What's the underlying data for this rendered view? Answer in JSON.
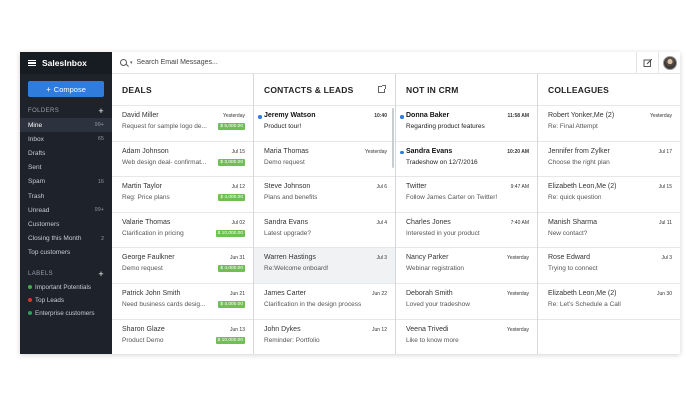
{
  "app": {
    "brand": "SalesInbox"
  },
  "sidebar": {
    "compose_label": "Compose",
    "folders_heading": "FOLDERS",
    "folders": [
      {
        "label": "Mine",
        "count": "99+"
      },
      {
        "label": "Inbox",
        "count": "65"
      },
      {
        "label": "Drafts",
        "count": ""
      },
      {
        "label": "Sent",
        "count": ""
      },
      {
        "label": "Spam",
        "count": "16"
      },
      {
        "label": "Trash",
        "count": ""
      },
      {
        "label": "Unread",
        "count": "99+"
      },
      {
        "label": "Customers",
        "count": ""
      },
      {
        "label": "Closing this Month",
        "count": "2"
      },
      {
        "label": "Top customers",
        "count": ""
      }
    ],
    "labels_heading": "LABELS",
    "labels": [
      {
        "label": "Important Potentials",
        "color": "#3fae49"
      },
      {
        "label": "Top Leads",
        "color": "#d9342b"
      },
      {
        "label": "Enterprise customers",
        "color": "#2e9e5b"
      }
    ]
  },
  "search": {
    "placeholder": "Search Email Messages..."
  },
  "columns": [
    {
      "title": "DEALS",
      "cards": [
        {
          "name": "David Miller",
          "time": "Yesterday",
          "subject": "Request for sample logo de...",
          "badge": "$ 5,000.00"
        },
        {
          "name": "Adam Johnson",
          "time": "Jul 15",
          "subject": "Web design deal- confirmat...",
          "badge": "$ 3,000.00"
        },
        {
          "name": "Martin Taylor",
          "time": "Jul 12",
          "subject": "Reg: Price plans",
          "badge": "$ 4,000.00"
        },
        {
          "name": "Valarie Thomas",
          "time": "Jul 02",
          "subject": "Clarification in pricing",
          "badge": "$ 10,000.00"
        },
        {
          "name": "George Faulkner",
          "time": "Jun 31",
          "subject": "Demo request",
          "badge": "$ 4,000.00"
        },
        {
          "name": "Patrick John Smith",
          "time": "Jun 21",
          "subject": "Need business cards desig...",
          "badge": "$ 4,000.00"
        },
        {
          "name": "Sharon Glaze",
          "time": "Jun 13",
          "subject": "Product Demo",
          "badge": "$ 10,000.00"
        }
      ]
    },
    {
      "title": "CONTACTS & LEADS",
      "cards": [
        {
          "name": "Jeremy Watson",
          "time": "10:40",
          "subject": "Product tour!",
          "unread": true
        },
        {
          "name": "Maria Thomas",
          "time": "Yesterday",
          "subject": "Demo request"
        },
        {
          "name": "Steve Johnson",
          "time": "Jul 6",
          "subject": "Plans and benefits"
        },
        {
          "name": "Sandra Evans",
          "time": "Jul 4",
          "subject": "Latest upgrade?"
        },
        {
          "name": "Warren Hastings",
          "time": "Jul 3",
          "subject": "Re:Welcome onboard!"
        },
        {
          "name": "James Carter",
          "time": "Jun 22",
          "subject": "Clarification in the design process"
        },
        {
          "name": "John Dykes",
          "time": "Jun 12",
          "subject": "Reminder: Portfolio"
        }
      ]
    },
    {
      "title": "NOT IN CRM",
      "cards": [
        {
          "name": "Donna Baker",
          "time": "11:58 AM",
          "subject": "Regarding product features",
          "unread": true
        },
        {
          "name": "Sandra Evans",
          "time": "10:20 AM",
          "subject": "Tradeshow on 12/7/2016",
          "unread": true
        },
        {
          "name": "Twitter",
          "time": "9:47 AM",
          "subject": "Follow James Carter on Twitter!"
        },
        {
          "name": "Charles Jones",
          "time": "7:40 AM",
          "subject": "Interested in your product"
        },
        {
          "name": "Nancy Parker",
          "time": "Yesterday",
          "subject": "Webinar registration"
        },
        {
          "name": "Deborah Smith",
          "time": "Yesterday",
          "subject": "Loved your tradeshow"
        },
        {
          "name": "Veena Trivedi",
          "time": "Yesterday",
          "subject": "Like to know more"
        }
      ]
    },
    {
      "title": "COLLEAGUES",
      "cards": [
        {
          "name": "Robert Yonker,Me (2)",
          "time": "Yesterday",
          "subject": "Re: Final Attempt"
        },
        {
          "name": "Jennifer from Zylker",
          "time": "Jul 17",
          "subject": "Choose the right plan"
        },
        {
          "name": "Elizabeth Leon,Me (2)",
          "time": "Jul 15",
          "subject": "Re: quick question"
        },
        {
          "name": "Manish Sharma",
          "time": "Jul 11",
          "subject": "New contact?"
        },
        {
          "name": "Rose Edward",
          "time": "Jul 3",
          "subject": "Trying to connect"
        },
        {
          "name": "Elizabeth Leon,Me (2)",
          "time": "Jun 30",
          "subject": "Re: Let's Schedule a Call"
        }
      ]
    }
  ]
}
